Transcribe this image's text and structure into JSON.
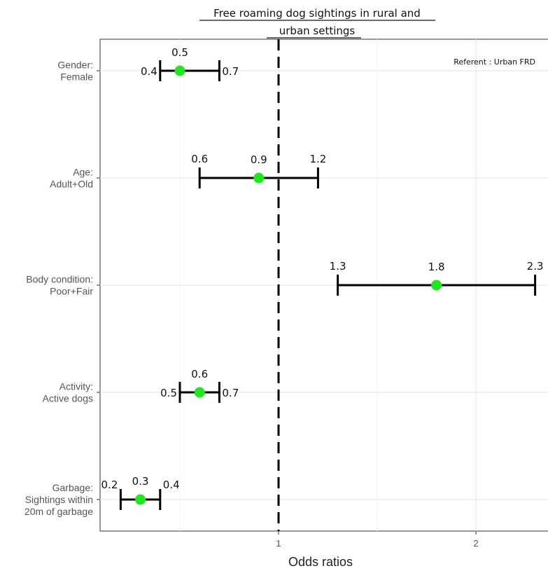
{
  "chart_data": {
    "type": "scatter",
    "subtype": "forest-plot",
    "title_lines": [
      "Free roaming dog sightings in rural and",
      "urban settings"
    ],
    "annotation": "Referent : Urban FRD",
    "xlabel": "Odds ratios",
    "ylabel": "",
    "xlim": [
      0.1,
      2.36
    ],
    "xticks": [
      1,
      2
    ],
    "reference_line": 1,
    "grid": true,
    "point_color": "#22e622",
    "categories": [
      {
        "label_lines": [
          "Gender:",
          "Female"
        ],
        "estimate": 0.5,
        "lower": 0.4,
        "upper": 0.7,
        "estimate_label": "0.5",
        "lower_label": "0.4",
        "upper_label": "0.7"
      },
      {
        "label_lines": [
          "Age:",
          "Adult+Old"
        ],
        "estimate": 0.9,
        "lower": 0.6,
        "upper": 1.2,
        "estimate_label": "0.9",
        "lower_label": "0.6",
        "upper_label": "1.2"
      },
      {
        "label_lines": [
          "Body condition:",
          "Poor+Fair"
        ],
        "estimate": 1.8,
        "lower": 1.3,
        "upper": 2.3,
        "estimate_label": "1.8",
        "lower_label": "1.3",
        "upper_label": "2.3"
      },
      {
        "label_lines": [
          "Activity:",
          "Active dogs"
        ],
        "estimate": 0.6,
        "lower": 0.5,
        "upper": 0.7,
        "estimate_label": "0.6",
        "lower_label": "0.5",
        "upper_label": "0.7"
      },
      {
        "label_lines": [
          "Garbage:",
          "Sightings within",
          "20m of garbage"
        ],
        "estimate": 0.3,
        "lower": 0.2,
        "upper": 0.4,
        "estimate_label": "0.3",
        "lower_label": "0.2",
        "upper_label": "0.4"
      }
    ]
  }
}
